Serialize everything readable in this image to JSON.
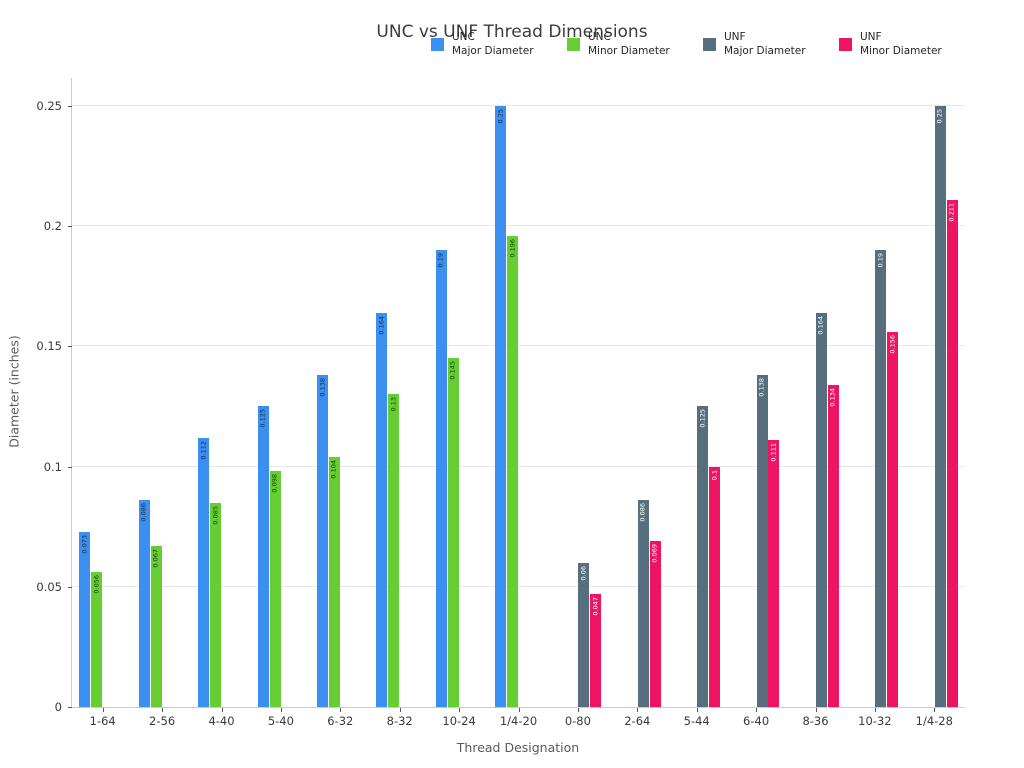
{
  "title": "UNC vs UNF Thread Dimensions",
  "chart_data": {
    "type": "bar",
    "title": "UNC vs UNF Thread Dimensions",
    "xlabel": "Thread Designation",
    "ylabel": "Diameter (inches)",
    "ylim": [
      0,
      0.2617
    ],
    "yticks": [
      0,
      0.05,
      0.1,
      0.15,
      0.2,
      0.25
    ],
    "grid": "horizontal",
    "legend_position": "top-center-row",
    "bar_value_labels": "rotated-90-inside-top",
    "categories": [
      "1-64",
      "2-56",
      "4-40",
      "5-40",
      "6-32",
      "8-32",
      "10-24",
      "1/4-20",
      "0-80",
      "2-64",
      "5-44",
      "6-40",
      "8-36",
      "10-32",
      "1/4-28"
    ],
    "series": [
      {
        "name": "UNC Major Diameter",
        "legend_lines": [
          "UNC",
          "Major Diameter"
        ],
        "color": "#3a8ff0",
        "label_color": "#152e4d",
        "values": [
          0.073,
          0.086,
          0.112,
          0.125,
          0.138,
          0.164,
          0.19,
          0.25,
          null,
          null,
          null,
          null,
          null,
          null,
          null
        ]
      },
      {
        "name": "UNC Minor Diameter",
        "legend_lines": [
          "UNC",
          "Minor Diameter"
        ],
        "color": "#65ce33",
        "label_color": "#1d3c0e",
        "values": [
          0.056,
          0.067,
          0.085,
          0.098,
          0.104,
          0.13,
          0.145,
          0.196,
          null,
          null,
          null,
          null,
          null,
          null,
          null
        ]
      },
      {
        "name": "UNF Major Diameter",
        "legend_lines": [
          "UNF",
          "Major Diameter"
        ],
        "color": "#566e7d",
        "label_color": "#ffffff",
        "values": [
          null,
          null,
          null,
          null,
          null,
          null,
          null,
          null,
          0.06,
          0.086,
          0.125,
          0.138,
          0.164,
          0.19,
          0.25
        ]
      },
      {
        "name": "UNF Minor Diameter",
        "legend_lines": [
          "UNF",
          "Minor Diameter"
        ],
        "color": "#ee1463",
        "label_color": "#ffffff",
        "values": [
          null,
          null,
          null,
          null,
          null,
          null,
          null,
          null,
          0.047,
          0.069,
          0.1,
          0.111,
          0.134,
          0.156,
          0.211
        ]
      }
    ],
    "colors": {
      "grid": "#e8e8e8",
      "spine": "#cccccc",
      "tick": "#555555",
      "tick_label": "#3a3a3a",
      "axis_label": "#5a5a5a",
      "title": "#3b3b3b"
    }
  }
}
